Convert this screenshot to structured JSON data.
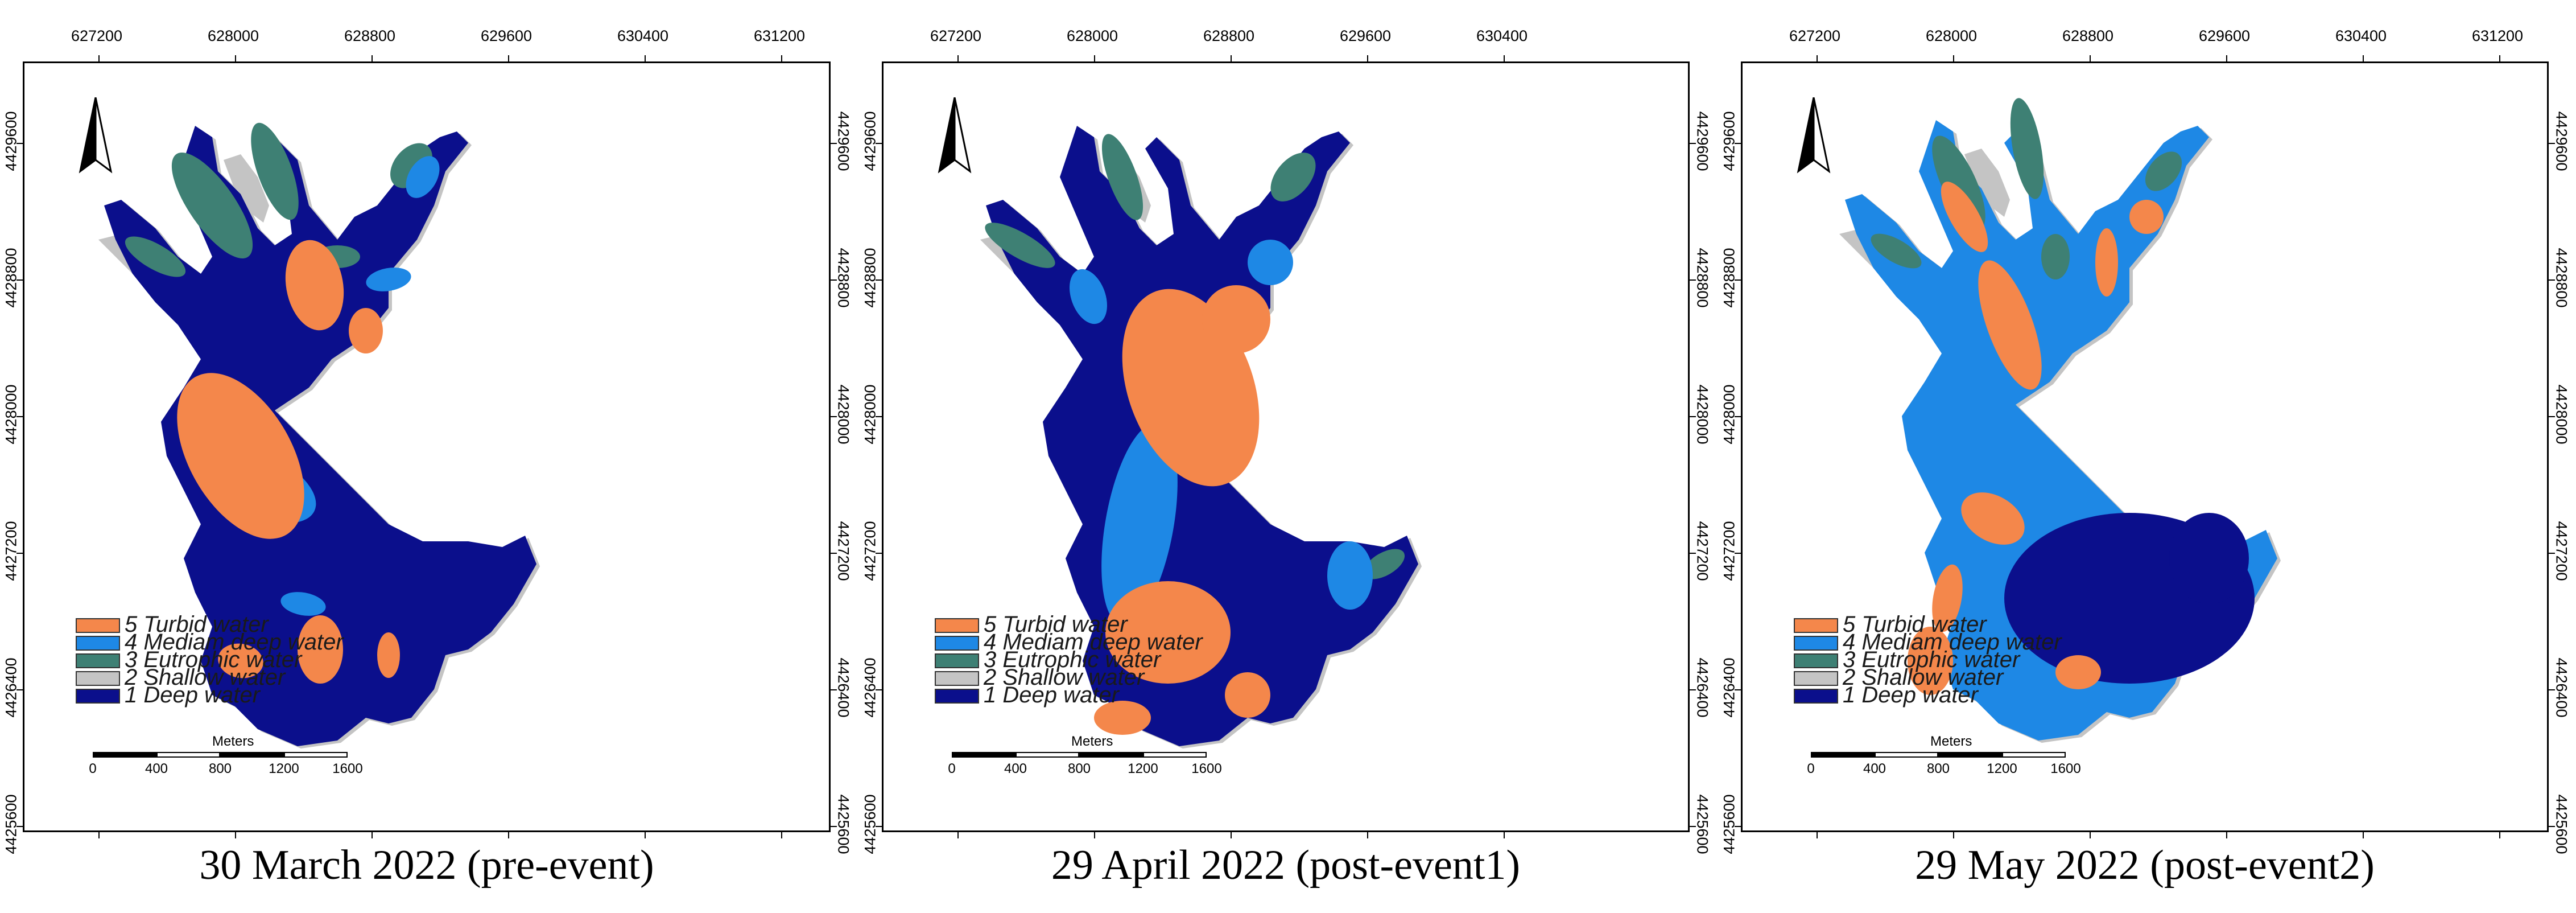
{
  "figure": {
    "panels": [
      {
        "caption": "30 March 2022 (pre-event)",
        "x_ticks": [
          "627200",
          "628000",
          "628800",
          "629600",
          "630400",
          "631200"
        ],
        "y_ticks": [
          "4429600",
          "4428800",
          "4428000",
          "4427200",
          "4426400",
          "4425600"
        ],
        "legend": [
          {
            "label": "5 Turbid water",
            "color": "#f4874b"
          },
          {
            "label": "4 Mediam deep water",
            "color": "#1e88e5"
          },
          {
            "label": "3 Eutrophic water",
            "color": "#3e8074"
          },
          {
            "label": "2 Shallow water",
            "color": "#c4c4c4"
          },
          {
            "label": "1 Deep water",
            "color": "#0b0f8c"
          }
        ],
        "scale": {
          "title": "Meters",
          "labels": [
            "0",
            "400",
            "800",
            "1200",
            "1600"
          ]
        }
      },
      {
        "caption": "29 April 2022 (post-event1)",
        "x_ticks": [
          "627200",
          "628000",
          "628800",
          "629600",
          "630400"
        ],
        "y_ticks": [
          "4429600",
          "4428800",
          "4428000",
          "4427200",
          "4426400",
          "4425600"
        ],
        "legend": [
          {
            "label": "5 Turbid water",
            "color": "#f4874b"
          },
          {
            "label": "4 Mediam deep water",
            "color": "#1e88e5"
          },
          {
            "label": "3 Eutrophic water",
            "color": "#3e8074"
          },
          {
            "label": "2 Shallow water",
            "color": "#c4c4c4"
          },
          {
            "label": "1 Deep water",
            "color": "#0b0f8c"
          }
        ],
        "scale": {
          "title": "Meters",
          "labels": [
            "0",
            "400",
            "800",
            "1200",
            "1600"
          ]
        }
      },
      {
        "caption": "29 May 2022 (post-event2)",
        "x_ticks": [
          "627200",
          "628000",
          "628800",
          "629600",
          "630400",
          "631200"
        ],
        "y_ticks": [
          "4429600",
          "4428800",
          "4428000",
          "4427200",
          "4426400",
          "4425600"
        ],
        "legend": [
          {
            "label": "5 Turbid water",
            "color": "#f4874b"
          },
          {
            "label": "4 Mediam deep water",
            "color": "#1e88e5"
          },
          {
            "label": "3 Eutrophic water",
            "color": "#3e8074"
          },
          {
            "label": "2 Shallow water",
            "color": "#c4c4c4"
          },
          {
            "label": "1 Deep water",
            "color": "#0b0f8c"
          }
        ],
        "scale": {
          "title": "Meters",
          "labels": [
            "0",
            "400",
            "800",
            "1200",
            "1600"
          ]
        }
      }
    ]
  }
}
